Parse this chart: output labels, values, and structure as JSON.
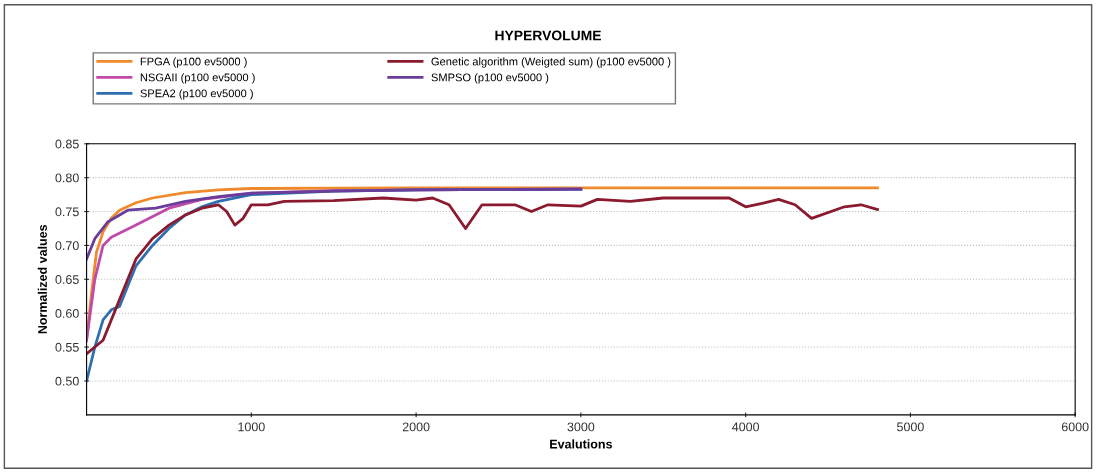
{
  "chart_data": {
    "type": "line",
    "title": "HYPERVOLUME",
    "xlabel": "Evalutions",
    "ylabel": "Normalized values",
    "xlim": [
      0,
      6000
    ],
    "xticks": [
      1000,
      2000,
      3000,
      4000,
      5000,
      6000
    ],
    "ylim": [
      0.45,
      0.85
    ],
    "yticks": [
      {
        "value": 0.5,
        "label": "0.50"
      },
      {
        "value": 0.55,
        "label": "0.55"
      },
      {
        "value": 0.6,
        "label": "0.60"
      },
      {
        "value": 0.65,
        "label": "0.65"
      },
      {
        "value": 0.7,
        "label": "0.70"
      },
      {
        "value": 0.75,
        "label": "0.75"
      },
      {
        "value": 0.8,
        "label": "0.80"
      },
      {
        "value": 0.85,
        "label": "0.85"
      }
    ],
    "grid": "y",
    "legend": "top",
    "marker": "none",
    "line_style": "solid",
    "series": [
      {
        "name": "FPGA (p100 ev5000 )",
        "color": "#ef8a2c",
        "x": [
          0,
          30,
          60,
          100,
          150,
          200,
          300,
          400,
          600,
          800,
          1000,
          2000,
          3000,
          4000,
          4800
        ],
        "values": [
          0.56,
          0.63,
          0.69,
          0.72,
          0.74,
          0.752,
          0.763,
          0.77,
          0.778,
          0.782,
          0.784,
          0.785,
          0.785,
          0.785,
          0.785
        ]
      },
      {
        "name": "NSGAII (p100 ev5000 )",
        "color": "#c04aa8",
        "x": [
          0,
          50,
          100,
          150,
          300,
          500,
          700,
          1000,
          1500,
          2000,
          3000
        ],
        "values": [
          0.56,
          0.65,
          0.7,
          0.712,
          0.73,
          0.755,
          0.768,
          0.777,
          0.781,
          0.782,
          0.783
        ]
      },
      {
        "name": "SPEA2 (p100 ev5000 )",
        "color": "#2f6fb0",
        "x": [
          0,
          50,
          100,
          150,
          200,
          250,
          300,
          400,
          500,
          600,
          700,
          800,
          1000,
          1500,
          2000,
          3000
        ],
        "values": [
          0.5,
          0.55,
          0.59,
          0.605,
          0.61,
          0.64,
          0.67,
          0.7,
          0.725,
          0.745,
          0.757,
          0.765,
          0.775,
          0.78,
          0.782,
          0.783
        ]
      },
      {
        "name": "Genetic algorithm (Weigted sum) (p100 ev5000 )",
        "color": "#8b1a2e",
        "x": [
          0,
          100,
          200,
          300,
          400,
          500,
          600,
          700,
          800,
          850,
          900,
          950,
          1000,
          1100,
          1200,
          1500,
          1800,
          2000,
          2100,
          2200,
          2300,
          2400,
          2600,
          2700,
          2800,
          3000,
          3100,
          3300,
          3500,
          3700,
          3900,
          4000,
          4100,
          4200,
          4300,
          4400,
          4600,
          4700,
          4800
        ],
        "values": [
          0.54,
          0.56,
          0.62,
          0.68,
          0.71,
          0.73,
          0.745,
          0.755,
          0.76,
          0.75,
          0.73,
          0.74,
          0.76,
          0.76,
          0.765,
          0.766,
          0.77,
          0.767,
          0.77,
          0.76,
          0.725,
          0.76,
          0.76,
          0.75,
          0.76,
          0.758,
          0.768,
          0.765,
          0.77,
          0.77,
          0.77,
          0.757,
          0.762,
          0.768,
          0.76,
          0.74,
          0.757,
          0.76,
          0.753
        ]
      },
      {
        "name": "SMPSO (p100 ev5000 )",
        "color": "#6a3d9a",
        "x": [
          0,
          50,
          130,
          250,
          420,
          600,
          800,
          1000,
          1500,
          2000,
          3000
        ],
        "values": [
          0.68,
          0.71,
          0.735,
          0.752,
          0.755,
          0.765,
          0.772,
          0.777,
          0.78,
          0.782,
          0.783
        ]
      }
    ]
  }
}
